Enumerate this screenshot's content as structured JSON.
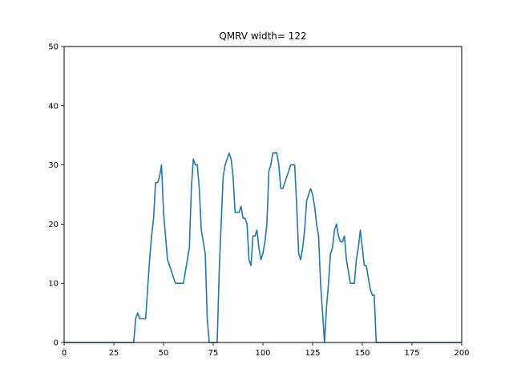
{
  "chart_data": {
    "type": "line",
    "title": "QMRV width= 122",
    "xlabel": "",
    "ylabel": "",
    "xlim": [
      0,
      200
    ],
    "ylim": [
      0,
      50
    ],
    "xticks": [
      0,
      25,
      50,
      75,
      100,
      125,
      150,
      175,
      200
    ],
    "yticks": [
      0,
      10,
      20,
      30,
      40,
      50
    ],
    "grid": false,
    "line_color": "#1f77b4",
    "series": [
      {
        "x": [
          0,
          35,
          36,
          37,
          38,
          39,
          40,
          41,
          42,
          43,
          44,
          45,
          46,
          47,
          48,
          49,
          50,
          51,
          52,
          53,
          54,
          55,
          56,
          57,
          58,
          59,
          60,
          61,
          62,
          63,
          64,
          65,
          66,
          67,
          68,
          69,
          70,
          71,
          72,
          73,
          74,
          75,
          76,
          77,
          78,
          79,
          80,
          81,
          82,
          83,
          84,
          85,
          86,
          87,
          88,
          89,
          90,
          91,
          92,
          93,
          94,
          95,
          96,
          97,
          98,
          99,
          100,
          101,
          102,
          103,
          104,
          105,
          106,
          107,
          108,
          109,
          110,
          111,
          112,
          113,
          114,
          115,
          116,
          117,
          118,
          119,
          120,
          121,
          122,
          123,
          124,
          125,
          126,
          127,
          128,
          129,
          130,
          131,
          132,
          133,
          134,
          135,
          136,
          137,
          138,
          139,
          140,
          141,
          142,
          143,
          144,
          145,
          146,
          147,
          148,
          149,
          150,
          151,
          152,
          153,
          154,
          155,
          156,
          157,
          158,
          200
        ],
        "y": [
          0,
          0,
          4,
          5,
          4,
          4,
          4,
          4,
          9,
          14,
          18,
          21,
          27,
          27,
          28,
          30,
          22,
          18,
          14,
          13,
          12,
          11,
          10,
          10,
          10,
          10,
          10,
          12,
          14,
          16,
          26,
          31,
          30,
          30,
          26,
          19,
          17,
          15,
          4,
          0,
          0,
          0,
          0,
          0,
          12,
          20,
          28,
          30,
          31,
          32,
          31,
          28,
          22,
          22,
          22,
          23,
          21,
          21,
          20,
          14,
          13,
          18,
          18,
          19,
          16,
          14,
          15,
          17,
          20,
          29,
          30,
          32,
          32,
          32,
          30,
          26,
          26,
          27,
          28,
          29,
          30,
          30,
          30,
          23,
          15,
          14,
          16,
          19,
          24,
          25,
          26,
          25,
          23,
          20,
          18,
          10,
          5,
          0,
          6,
          10,
          15,
          16,
          19,
          20,
          18,
          17,
          17,
          18,
          14,
          12,
          10,
          10,
          10,
          14,
          16,
          19,
          16,
          13,
          13,
          11,
          9,
          8,
          8,
          0,
          0,
          0
        ]
      }
    ]
  }
}
